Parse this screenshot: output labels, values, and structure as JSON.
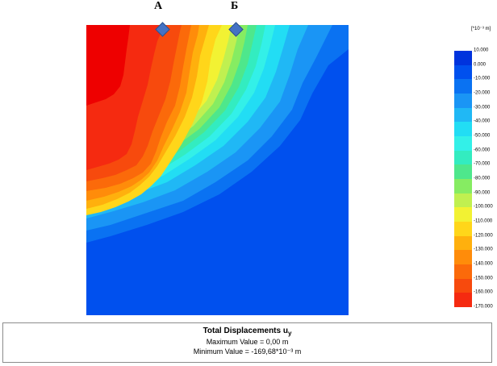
{
  "markers": {
    "a_label": "А",
    "b_label": "Б"
  },
  "legend": {
    "unit_label": "[*10⁻³ m]",
    "levels": [
      {
        "label": "10.000",
        "color": "#0033dd"
      },
      {
        "label": "0.000",
        "color": "#0050ee"
      },
      {
        "label": "-10.000",
        "color": "#0a72f2"
      },
      {
        "label": "-20.000",
        "color": "#1a95f5"
      },
      {
        "label": "-30.000",
        "color": "#20b8f5"
      },
      {
        "label": "-40.000",
        "color": "#22ddf4"
      },
      {
        "label": "-50.000",
        "color": "#33f0e8"
      },
      {
        "label": "-60.000",
        "color": "#33ecc0"
      },
      {
        "label": "-70.000",
        "color": "#4ee78c"
      },
      {
        "label": "-80.000",
        "color": "#86ec62"
      },
      {
        "label": "-90.000",
        "color": "#c0f050"
      },
      {
        "label": "-100.000",
        "color": "#f2f233"
      },
      {
        "label": "-110.000",
        "color": "#ffd61a"
      },
      {
        "label": "-120.000",
        "color": "#ffb00d"
      },
      {
        "label": "-130.000",
        "color": "#ff8c0a"
      },
      {
        "label": "-140.000",
        "color": "#fb6a0a"
      },
      {
        "label": "-150.000",
        "color": "#f74a0d"
      },
      {
        "label": "-160.000",
        "color": "#f52a10"
      },
      {
        "label": "-170.000",
        "color": "#ee0000"
      }
    ]
  },
  "info": {
    "title_main": "Total Displacements u",
    "title_sub": "y",
    "max_line": "Maximum Value = 0,00 m",
    "min_line": "Minimum Value = -169,68*10⁻³ m"
  },
  "colors": {
    "marker_fill": "#4472c4",
    "plot_background": "#0050ee"
  }
}
